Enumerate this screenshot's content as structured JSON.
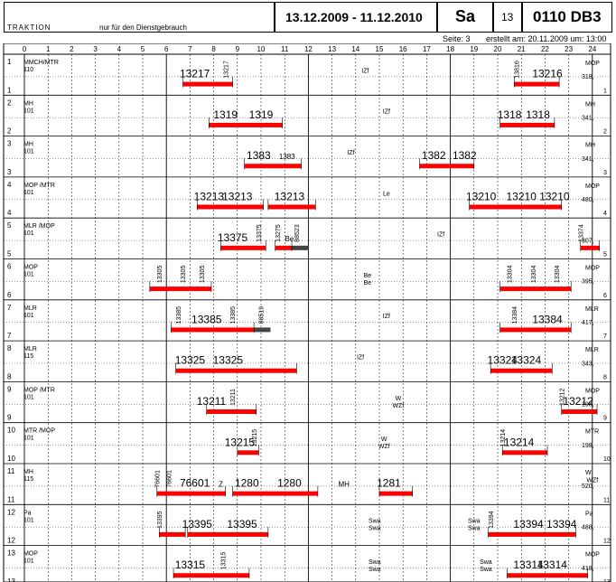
{
  "header": {
    "org": "TRAKTION",
    "note": "nur für den Dienstgebrauch",
    "period": "13.12.2009  -  11.12.2010",
    "day": "Sa",
    "day_no": "13",
    "plan_id": "0110  DB3",
    "page": "Seite: 3",
    "created": "erstellt am: 20.11.2009  um: 13:00"
  },
  "hours": [
    "0",
    "1",
    "2",
    "3",
    "4",
    "5",
    "6",
    "7",
    "8",
    "9",
    "10",
    "11",
    "12",
    "13",
    "14",
    "15",
    "16",
    "17",
    "18",
    "19",
    "20",
    "21",
    "22",
    "23",
    "24"
  ],
  "colors": {
    "bar": "#ff0000",
    "grid": "#000000",
    "hatch": "#444444"
  },
  "rows": [
    {
      "no": "1",
      "code": "MMCH/MTR",
      "sub": "110",
      "end_top": "MOP",
      "end_bot": "318,",
      "bars": [
        {
          "s": 6.7,
          "e": 8.8
        },
        {
          "s": 20.7,
          "e": 22.6
        }
      ],
      "trains": [
        {
          "t": "13217",
          "h": 7.2,
          "b": true
        },
        {
          "t": "13217",
          "h": 8.6,
          "v": true
        },
        {
          "t": "13816",
          "h": 20.9,
          "v": true
        },
        {
          "t": "13216",
          "h": 22.1,
          "b": true
        }
      ],
      "marks": [
        {
          "t": "IZf",
          "h": 14.4
        }
      ]
    },
    {
      "no": "2",
      "code": "MH",
      "sub": "101",
      "end_top": "MH",
      "end_bot": "341,",
      "bars": [
        {
          "s": 7.8,
          "e": 10.9
        },
        {
          "s": 20.1,
          "e": 22.4
        }
      ],
      "trains": [
        {
          "t": "1319",
          "h": 8.5,
          "b": true
        },
        {
          "t": "1319",
          "h": 10.0,
          "b": true
        },
        {
          "t": "1318",
          "h": 20.5,
          "b": true
        },
        {
          "t": "1318",
          "h": 21.7,
          "b": true
        }
      ],
      "marks": [
        {
          "t": "IZf",
          "h": 15.3
        }
      ]
    },
    {
      "no": "3",
      "code": "MH",
      "sub": "101",
      "end_top": "MH",
      "end_bot": "341,",
      "bars": [
        {
          "s": 9.3,
          "e": 11.7
        },
        {
          "s": 16.7,
          "e": 19.0
        }
      ],
      "trains": [
        {
          "t": "1383",
          "h": 9.9,
          "b": true
        },
        {
          "t": "1383",
          "h": 11.1,
          "b": false
        },
        {
          "t": "1382",
          "h": 17.3,
          "b": true
        },
        {
          "t": "1382",
          "h": 18.6,
          "b": true
        }
      ],
      "marks": [
        {
          "t": "IZf",
          "h": 13.8
        }
      ]
    },
    {
      "no": "4",
      "code": "MOP /MTR",
      "sub": "101",
      "end_top": "MOP",
      "end_bot": "480,",
      "bars": [
        {
          "s": 7.3,
          "e": 10.1
        },
        {
          "s": 10.3,
          "e": 12.3
        },
        {
          "s": 18.8,
          "e": 22.7
        }
      ],
      "trains": [
        {
          "t": "13213",
          "h": 7.8,
          "b": true
        },
        {
          "t": "13213",
          "h": 9.0,
          "b": true
        },
        {
          "t": "13213",
          "h": 11.2,
          "b": true
        },
        {
          "t": "13210",
          "h": 19.3,
          "b": true
        },
        {
          "t": "13210",
          "h": 21.0,
          "b": true
        },
        {
          "t": "13210",
          "h": 22.4,
          "b": true
        }
      ],
      "marks": [
        {
          "t": "Le",
          "h": 15.3
        }
      ]
    },
    {
      "no": "5",
      "code": "MLR /MOP",
      "sub": "101",
      "end_top": "",
      "end_bot": "307,",
      "bars": [
        {
          "s": 8.3,
          "e": 10.2
        },
        {
          "s": 10.6,
          "e": 11.3
        },
        {
          "s": 23.5,
          "e": 24.3
        }
      ],
      "hatch": [
        {
          "s": 11.3,
          "e": 12.0
        }
      ],
      "trains": [
        {
          "t": "13375",
          "h": 8.8,
          "b": true
        },
        {
          "t": "13375",
          "h": 10.0,
          "v": true
        },
        {
          "t": "13275",
          "h": 10.8,
          "v": true
        },
        {
          "t": "Be",
          "h": 11.2,
          "b": false
        },
        {
          "t": "88523",
          "h": 11.6,
          "v": true
        },
        {
          "t": "13374",
          "h": 23.6,
          "v": true
        }
      ],
      "marks": [
        {
          "t": "IZf",
          "h": 17.6
        }
      ]
    },
    {
      "no": "6",
      "code": "MOP",
      "sub": "101",
      "end_top": "MOP",
      "end_bot": "395,",
      "bars": [
        {
          "s": 5.3,
          "e": 7.9
        },
        {
          "s": 20.1,
          "e": 23.1
        }
      ],
      "trains": [
        {
          "t": "13305",
          "h": 5.8,
          "v": true
        },
        {
          "t": "13305",
          "h": 6.8,
          "v": true
        },
        {
          "t": "13305",
          "h": 7.6,
          "v": true
        },
        {
          "t": "13304",
          "h": 20.6,
          "v": true
        },
        {
          "t": "13304",
          "h": 21.6,
          "v": true
        },
        {
          "t": "13304",
          "h": 22.6,
          "v": true
        }
      ],
      "marks": [
        {
          "t": "Be",
          "h": 14.5
        },
        {
          "t": "Be",
          "h": 14.5,
          "dy": 8
        }
      ]
    },
    {
      "no": "7",
      "code": "MLR",
      "sub": "101",
      "end_top": "MLR",
      "end_bot": "417,",
      "bars": [
        {
          "s": 6.2,
          "e": 9.7
        },
        {
          "s": 20.1,
          "e": 23.1
        }
      ],
      "hatch": [
        {
          "s": 9.7,
          "e": 10.4
        }
      ],
      "trains": [
        {
          "t": "13385",
          "h": 6.6,
          "v": true
        },
        {
          "t": "13385",
          "h": 7.7,
          "b": true
        },
        {
          "t": "13385",
          "h": 8.9,
          "v": true
        },
        {
          "t": "88519",
          "h": 10.1,
          "v": true
        },
        {
          "t": "13384",
          "h": 20.8,
          "v": true
        },
        {
          "t": "13384",
          "h": 22.1,
          "b": true
        }
      ],
      "marks": [
        {
          "t": "IZf",
          "h": 15.3
        }
      ]
    },
    {
      "no": "8",
      "code": "MLR",
      "sub": "115",
      "end_top": "MLR",
      "end_bot": "343,",
      "bars": [
        {
          "s": 6.4,
          "e": 11.5
        },
        {
          "s": 19.7,
          "e": 22.3
        }
      ],
      "trains": [
        {
          "t": "13325",
          "h": 7.0,
          "b": true
        },
        {
          "t": "13325",
          "h": 8.6,
          "b": true
        },
        {
          "t": "13324",
          "h": 20.2,
          "b": true
        },
        {
          "t": "13324",
          "h": 21.2,
          "b": true
        }
      ],
      "marks": [
        {
          "t": "IZf",
          "h": 14.2
        }
      ]
    },
    {
      "no": "9",
      "code": "MOP /MTR",
      "sub": "101",
      "end_top": "MOP",
      "end_bot": "198,",
      "bars": [
        {
          "s": 7.7,
          "e": 9.8
        },
        {
          "s": 22.7,
          "e": 24.2
        }
      ],
      "trains": [
        {
          "t": "13211",
          "h": 7.9,
          "b": true
        },
        {
          "t": "13211",
          "h": 8.9,
          "v": true
        },
        {
          "t": "13212",
          "h": 22.8,
          "v": true
        },
        {
          "t": "13212",
          "h": 23.4,
          "b": true
        }
      ],
      "marks": [
        {
          "t": "W",
          "h": 15.8
        },
        {
          "t": "WZf",
          "h": 15.8,
          "dy": 8
        }
      ]
    },
    {
      "no": "10",
      "code": "MTR /MOP",
      "sub": "101",
      "end_top": "MTR",
      "end_bot": "198,",
      "bars": [
        {
          "s": 9.0,
          "e": 9.9
        },
        {
          "s": 20.2,
          "e": 22.1
        }
      ],
      "trains": [
        {
          "t": "13215",
          "h": 9.1,
          "b": true
        },
        {
          "t": "13215",
          "h": 9.8,
          "v": true
        },
        {
          "t": "13214",
          "h": 20.3,
          "v": true
        },
        {
          "t": "13214",
          "h": 20.9,
          "b": true
        }
      ],
      "marks": [
        {
          "t": "W",
          "h": 15.2
        },
        {
          "t": "WZf",
          "h": 15.2,
          "dy": 8
        }
      ]
    },
    {
      "no": "11",
      "code": "MH",
      "sub": "115",
      "end_top": "W",
      "end_bot": "520,",
      "bars": [
        {
          "s": 5.6,
          "e": 8.5
        },
        {
          "s": 8.8,
          "e": 12.4
        },
        {
          "s": 15.0,
          "e": 16.4
        }
      ],
      "trains": [
        {
          "t": "76601",
          "h": 5.7,
          "v": true
        },
        {
          "t": "76601",
          "h": 6.2,
          "v": true
        },
        {
          "t": "76601",
          "h": 7.2,
          "b": true
        },
        {
          "t": "Z",
          "h": 8.3,
          "b": false
        },
        {
          "t": "1280",
          "h": 9.4,
          "b": true
        },
        {
          "t": "1280",
          "h": 11.2,
          "b": true
        },
        {
          "t": "MH",
          "h": 13.5,
          "b": false
        },
        {
          "t": "1281",
          "h": 15.4,
          "b": true
        }
      ],
      "marks": [
        {
          "t": "WZf",
          "h": 24.0
        }
      ]
    },
    {
      "no": "12",
      "code": "Pa",
      "sub": "101",
      "end_top": "Pa",
      "end_bot": "488,",
      "bars": [
        {
          "s": 5.7,
          "e": 6.8
        },
        {
          "s": 6.9,
          "e": 10.3
        },
        {
          "s": 19.6,
          "e": 23.3
        }
      ],
      "trains": [
        {
          "t": "13395",
          "h": 5.8,
          "v": true
        },
        {
          "t": "13395",
          "h": 7.3,
          "b": true
        },
        {
          "t": "13395",
          "h": 9.2,
          "b": true
        },
        {
          "t": "13394",
          "h": 19.8,
          "v": true
        },
        {
          "t": "13394",
          "h": 21.3,
          "b": true
        },
        {
          "t": "13394",
          "h": 22.7,
          "b": true
        }
      ],
      "marks": [
        {
          "t": "Swa",
          "h": 14.8
        },
        {
          "t": "Swa",
          "h": 14.8,
          "dy": 8
        },
        {
          "t": "Swa",
          "h": 19.0
        },
        {
          "t": "Swa",
          "h": 19.0,
          "dy": 8
        }
      ]
    },
    {
      "no": "13",
      "code": "MOP",
      "sub": "101",
      "end_top": "MOP",
      "end_bot": "418,",
      "bars": [
        {
          "s": 6.3,
          "e": 9.5
        },
        {
          "s": 20.4,
          "e": 23.8
        }
      ],
      "trains": [
        {
          "t": "13315",
          "h": 7.0,
          "b": true
        },
        {
          "t": "13315",
          "h": 8.5,
          "v": true
        },
        {
          "t": "13314",
          "h": 21.3,
          "b": true
        },
        {
          "t": "13314",
          "h": 22.3,
          "b": true
        }
      ],
      "marks": [
        {
          "t": "Swa",
          "h": 14.8
        },
        {
          "t": "Swa",
          "h": 14.8,
          "dy": 8
        },
        {
          "t": "Swa",
          "h": 19.5
        },
        {
          "t": "Swa",
          "h": 19.5,
          "dy": 8
        }
      ]
    }
  ]
}
